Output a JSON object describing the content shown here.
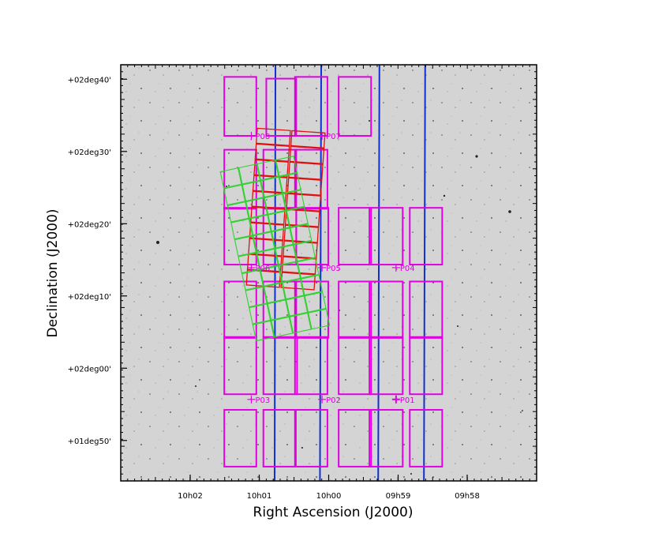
{
  "chart_data": {
    "type": "scatter",
    "xlabel": "Right Ascension (J2000)",
    "ylabel": "Declination (J2000)",
    "xlim": [
      10.05,
      9.95
    ],
    "ylim": [
      1.74,
      2.7
    ],
    "x_ticks": [
      {
        "label": "10h02",
        "value": 10.0333
      },
      {
        "label": "10h01",
        "value": 10.0167
      },
      {
        "label": "10h00",
        "value": 10.0
      },
      {
        "label": "09h59",
        "value": 9.9833
      },
      {
        "label": "09h58",
        "value": 9.9667
      }
    ],
    "y_ticks": [
      {
        "label": "+01deg50'",
        "value": 1.8333
      },
      {
        "label": "+02deg00'",
        "value": 2.0
      },
      {
        "label": "+02deg10'",
        "value": 2.1667
      },
      {
        "label": "+02deg20'",
        "value": 2.3333
      },
      {
        "label": "+02deg30'",
        "value": 2.5
      },
      {
        "label": "+02deg40'",
        "value": 2.6667
      }
    ],
    "colors": {
      "magenta": "#e000e0",
      "blue": "#1030d0",
      "red": "#e01010",
      "green": "#30d030",
      "sky": "#d2d2d2"
    },
    "pointings": [
      {
        "label": "P01",
        "ra": 9.9838,
        "dec": 1.928
      },
      {
        "label": "P02",
        "ra": 10.0016,
        "dec": 1.928
      },
      {
        "label": "P03",
        "ra": 10.0186,
        "dec": 1.928
      },
      {
        "label": "P04",
        "ra": 9.9838,
        "dec": 2.232
      },
      {
        "label": "P05",
        "ra": 10.0016,
        "dec": 2.232
      },
      {
        "label": "P06",
        "ra": 10.0186,
        "dec": 2.232
      },
      {
        "label": "P07",
        "ra": 10.0016,
        "dec": 2.536
      },
      {
        "label": "P08",
        "ra": 10.0186,
        "dec": 2.536
      }
    ],
    "magenta_squares": [
      [
        10.0251,
        2.536,
        10.0174,
        2.672
      ],
      [
        10.0251,
        2.368,
        10.0174,
        2.504
      ],
      [
        10.0251,
        2.239,
        10.0174,
        2.37
      ],
      [
        10.0251,
        2.07,
        10.0174,
        2.2
      ],
      [
        10.0251,
        1.94,
        10.0174,
        2.072
      ],
      [
        10.0251,
        1.773,
        10.0174,
        1.904
      ],
      [
        10.015,
        2.536,
        10.0078,
        2.668
      ],
      [
        10.0157,
        2.368,
        10.0078,
        2.504
      ],
      [
        10.0157,
        2.239,
        10.0078,
        2.37
      ],
      [
        10.0157,
        2.07,
        10.0078,
        2.2
      ],
      [
        10.0157,
        1.94,
        10.0076,
        2.072
      ],
      [
        10.0157,
        1.773,
        10.0081,
        1.904
      ],
      [
        10.0081,
        2.536,
        10.0003,
        2.672
      ],
      [
        10.0081,
        2.368,
        10.0003,
        2.504
      ],
      [
        10.0078,
        2.239,
        10.0001,
        2.37
      ],
      [
        10.0081,
        2.07,
        10.0001,
        2.2
      ],
      [
        10.0081,
        1.94,
        10.0003,
        2.072
      ],
      [
        10.0079,
        1.773,
        10.0003,
        1.904
      ],
      [
        9.9976,
        2.536,
        9.9898,
        2.672
      ],
      [
        9.9976,
        2.239,
        9.9898,
        2.37
      ],
      [
        9.9976,
        2.07,
        9.9898,
        2.2
      ],
      [
        9.9976,
        1.94,
        9.9898,
        2.072
      ],
      [
        9.9976,
        1.773,
        9.9898,
        1.904
      ],
      [
        9.9902,
        2.239,
        9.9822,
        2.37
      ],
      [
        9.9902,
        2.07,
        9.9822,
        2.2
      ],
      [
        9.9902,
        1.94,
        9.9822,
        2.072
      ],
      [
        9.9902,
        1.773,
        9.9822,
        1.904
      ],
      [
        9.9805,
        2.239,
        9.9727,
        2.37
      ],
      [
        9.9805,
        2.07,
        9.9727,
        2.2
      ],
      [
        9.9805,
        1.94,
        9.9727,
        2.072
      ],
      [
        9.9805,
        1.773,
        9.9727,
        1.904
      ]
    ],
    "blue_lines": [
      [
        10.0128,
        2.7,
        10.013,
        1.74
      ],
      [
        10.0018,
        2.7,
        10.0021,
        1.74
      ],
      [
        9.9878,
        2.7,
        9.9881,
        1.74
      ],
      [
        9.9768,
        2.7,
        9.9771,
        1.74
      ]
    ]
  }
}
